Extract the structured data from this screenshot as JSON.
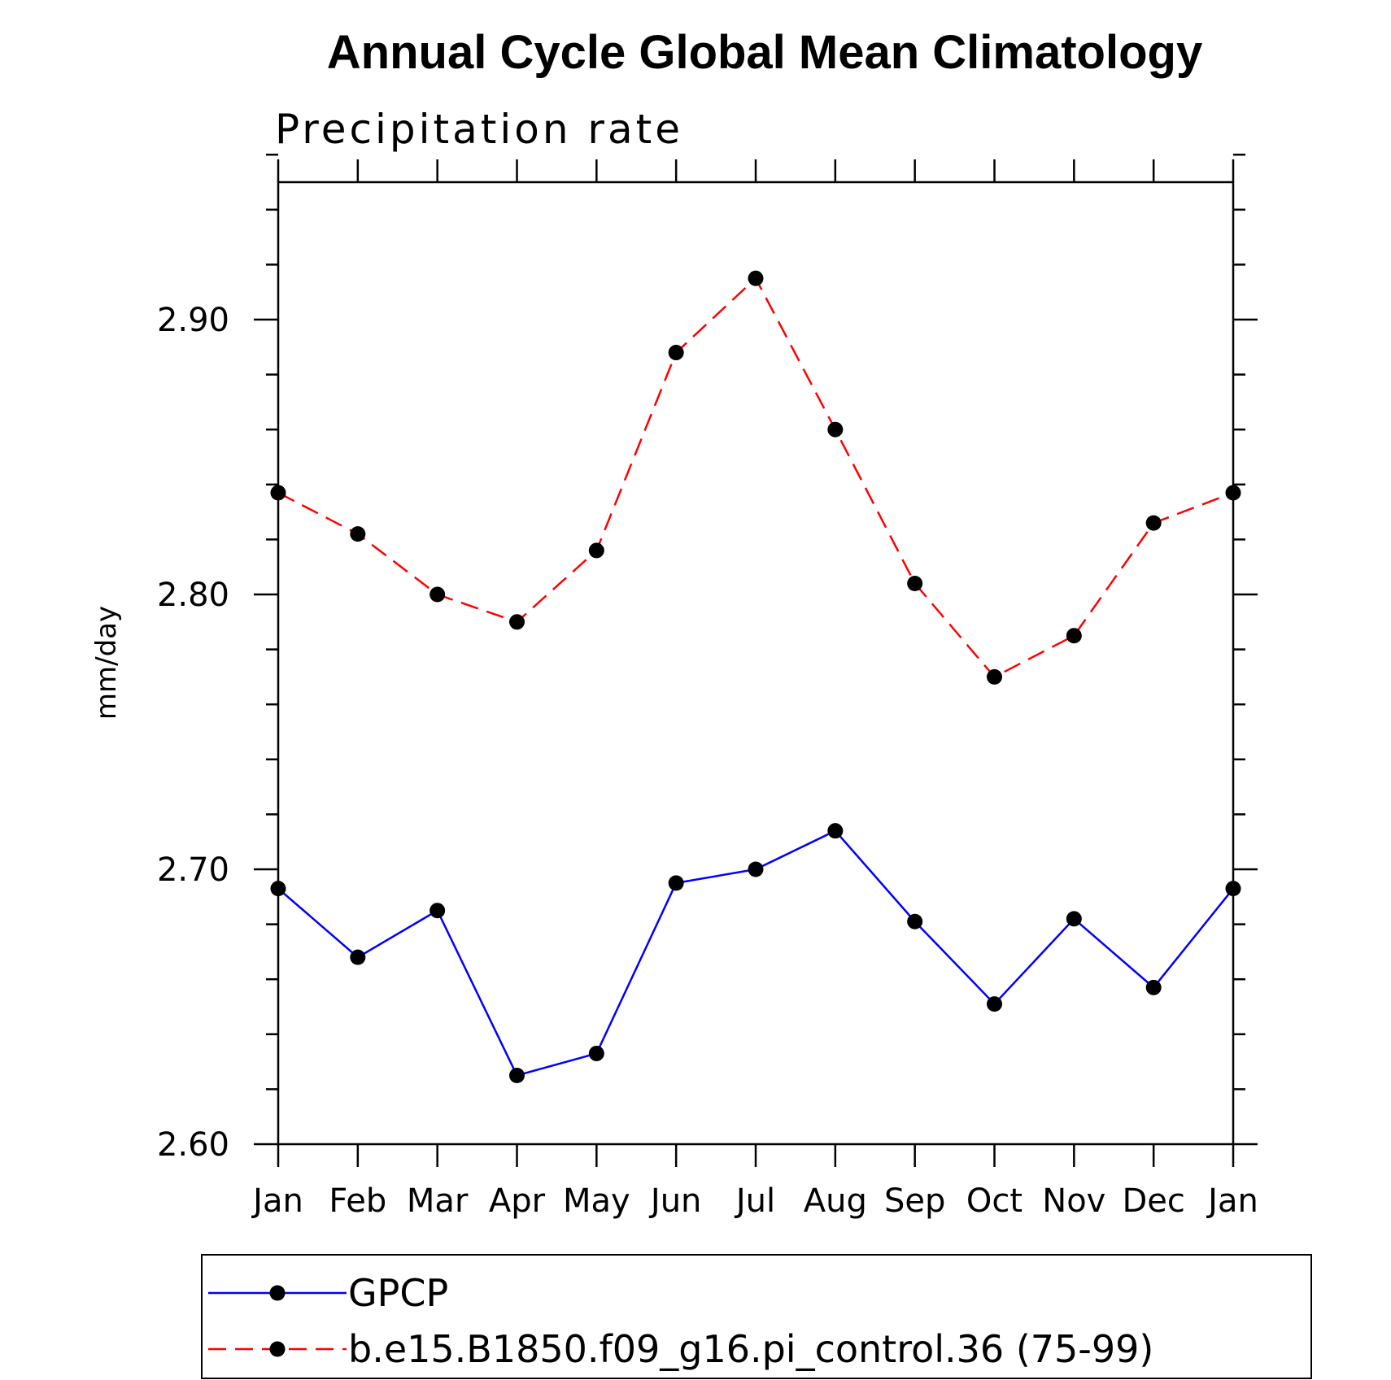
{
  "chart_data": {
    "type": "line",
    "title": "Annual Cycle Global Mean Climatology",
    "subtitle": "Precipitation rate",
    "xlabel": "",
    "ylabel": "mm/day",
    "categories": [
      "Jan",
      "Feb",
      "Mar",
      "Apr",
      "May",
      "Jun",
      "Jul",
      "Aug",
      "Sep",
      "Oct",
      "Nov",
      "Dec",
      "Jan"
    ],
    "ylim": [
      2.6,
      2.95
    ],
    "yticks": [
      2.6,
      2.7,
      2.8,
      2.9
    ],
    "ytick_labels": [
      "2.60",
      "2.70",
      "2.80",
      "2.90"
    ],
    "y_minor_step": 0.02,
    "grid": false,
    "legend_position": "bottom",
    "series": [
      {
        "name": "GPCP",
        "color": "#0000ff",
        "dash": "solid",
        "values": [
          2.693,
          2.668,
          2.685,
          2.625,
          2.633,
          2.695,
          2.7,
          2.714,
          2.681,
          2.651,
          2.682,
          2.657,
          2.693
        ]
      },
      {
        "name": "b.e15.B1850.f09_g16.pi_control.36 (75-99)",
        "color": "#ff0000",
        "dash": "dashed",
        "values": [
          2.837,
          2.822,
          2.8,
          2.79,
          2.816,
          2.888,
          2.915,
          2.86,
          2.804,
          2.77,
          2.785,
          2.826,
          2.837
        ]
      }
    ]
  }
}
